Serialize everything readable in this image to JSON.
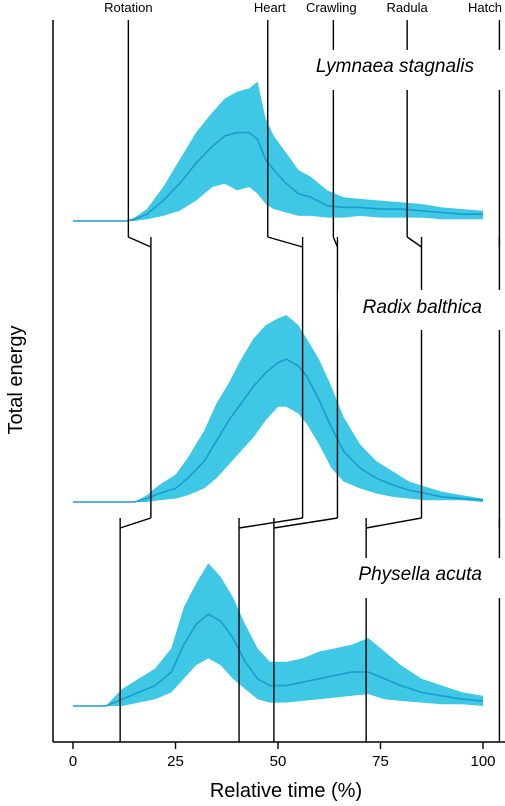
{
  "chart_data": {
    "type": "area",
    "xlabel": "Relative time (%)",
    "ylabel": "Total energy",
    "xlim": [
      -5,
      105
    ],
    "xticks": [
      0,
      25,
      50,
      75,
      100
    ],
    "ylim": [
      0,
      100
    ],
    "grid": false,
    "colors": {
      "fill": "#3ec8e6",
      "line": "#1a9ccc",
      "event_line": "#000000"
    },
    "events": [
      {
        "name": "Rotation",
        "label_x": 13.5
      },
      {
        "name": "Heart",
        "label_x": 48
      },
      {
        "name": "Crawling",
        "label_x": 63
      },
      {
        "name": "Radula",
        "label_x": 81.5
      },
      {
        "name": "Hatch",
        "label_x": 104
      }
    ],
    "series": [
      {
        "name": "Lymnaea stagnalis",
        "events_x": {
          "Rotation": 13.5,
          "Heart": 47.5,
          "Crawling": 63.5,
          "Radula": 81.5,
          "Hatch": 104
        },
        "events_x_below": {
          "Rotation": 19,
          "Heart": 56,
          "Crawling": 64.5,
          "Radula": 85,
          "Hatch": 104
        },
        "x": [
          0,
          13,
          15,
          18,
          22,
          26,
          30,
          34,
          37,
          40,
          43,
          45,
          47,
          49,
          52,
          55,
          58,
          62,
          66,
          70,
          75,
          80,
          85,
          90,
          95,
          100
        ],
        "mean": [
          0,
          0,
          0.5,
          2,
          6,
          11,
          17,
          22,
          25,
          26,
          26,
          24,
          18,
          15,
          11,
          8,
          7,
          4.5,
          4,
          4,
          3.5,
          3.5,
          3,
          2.5,
          2,
          2
        ],
        "lower": [
          0,
          0,
          0,
          0.5,
          1.5,
          3,
          6,
          10,
          11,
          9,
          10,
          8,
          5,
          3.5,
          2.5,
          1.5,
          1.5,
          1,
          1,
          1.5,
          1,
          1,
          1,
          0.5,
          0.5,
          0.5
        ],
        "upper": [
          0,
          0,
          1,
          3.5,
          10,
          18,
          26,
          32,
          36,
          38,
          39,
          41,
          30,
          25,
          20,
          15,
          13,
          9,
          7,
          6.5,
          6,
          5.5,
          5,
          4,
          3.5,
          3
        ]
      },
      {
        "name": "Radix balthica",
        "events_x": {
          "Rotation": 19,
          "Heart": 56,
          "Crawling": 64.5,
          "Radula": 85,
          "Hatch": 104
        },
        "events_x_below": {
          "Rotation": 11.5,
          "Heart": 40.5,
          "Crawling": 49,
          "Radula": 71.5,
          "Hatch": 104
        },
        "x": [
          0,
          15,
          18,
          21,
          25,
          28,
          32,
          35,
          38,
          41,
          44,
          47,
          50,
          52,
          55,
          57,
          60,
          63,
          66,
          70,
          74,
          78,
          82,
          86,
          90,
          95,
          100
        ],
        "mean": [
          0,
          0,
          1,
          2.5,
          4,
          7,
          12,
          18,
          24,
          29,
          34,
          38,
          41,
          42,
          40,
          37,
          30,
          22,
          15,
          10,
          7,
          5,
          3.5,
          2.5,
          1.5,
          1,
          0.5
        ],
        "lower": [
          0,
          0,
          0,
          0.5,
          1,
          2,
          4,
          7,
          11,
          15,
          19,
          24,
          28,
          28,
          26,
          23,
          17,
          10,
          6,
          4,
          2.5,
          1.5,
          1,
          0.5,
          0.5,
          0.5,
          0
        ],
        "upper": [
          0,
          0,
          2,
          5,
          8,
          13,
          21,
          29,
          35,
          42,
          48,
          52,
          54,
          55,
          52,
          48,
          42,
          34,
          25,
          17,
          12,
          9,
          6,
          4.5,
          3,
          2,
          1
        ]
      },
      {
        "name": "Physella acuta",
        "events_x": {
          "Rotation": 11.5,
          "Heart": 40.5,
          "Crawling": 49,
          "Radula": 71.5,
          "Hatch": 104
        },
        "events_x_below": null,
        "x": [
          0,
          8,
          12,
          16,
          20,
          24,
          27,
          30,
          33,
          36,
          39,
          42,
          45,
          48,
          52,
          56,
          60,
          64,
          68,
          72,
          76,
          80,
          85,
          90,
          95,
          100
        ],
        "mean": [
          0,
          0,
          2,
          4,
          6,
          10,
          18,
          24,
          27,
          25,
          20,
          13,
          8,
          6,
          6,
          7,
          8,
          9,
          10,
          10,
          8,
          6,
          4,
          3,
          2,
          1.5
        ],
        "lower": [
          0,
          0,
          0,
          1,
          2,
          4,
          8,
          12,
          14,
          12,
          8,
          5,
          2,
          1,
          1,
          1.5,
          2,
          2.5,
          3,
          3.5,
          2,
          1.5,
          1,
          0.5,
          0.5,
          0
        ],
        "upper": [
          0,
          0,
          5,
          8,
          11,
          17,
          29,
          36,
          42,
          38,
          32,
          24,
          17,
          13,
          13,
          14,
          16,
          17,
          18,
          20,
          16,
          12,
          8,
          6,
          4,
          3
        ]
      }
    ]
  }
}
